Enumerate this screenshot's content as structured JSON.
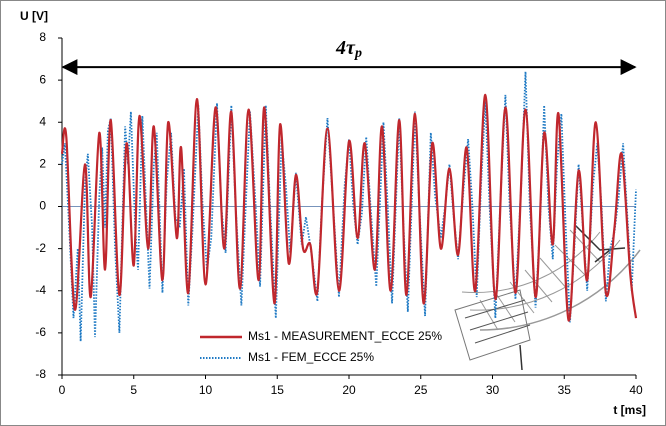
{
  "chart_data": {
    "type": "line",
    "y_label": "U [V]",
    "x_label": "t [ms]",
    "annotation": "4τ",
    "annotation_sub": "p",
    "xlim": [
      0,
      40
    ],
    "xticks": [
      0,
      5,
      10,
      15,
      20,
      25,
      30,
      35,
      40
    ],
    "ylim": [
      -8,
      8
    ],
    "yticks": [
      -8,
      -6,
      -4,
      -2,
      0,
      2,
      4,
      6,
      8
    ],
    "grid": false,
    "legend": "bottom",
    "series": [
      {
        "name": "Ms1 - MEASUREMENT_ECCE 25%",
        "color": "#c0272d",
        "style": "solid",
        "x": [
          0,
          0.3,
          0.9,
          1.6,
          2.0,
          2.6,
          3.0,
          3.4,
          4.0,
          4.5,
          5.0,
          5.4,
          6.0,
          6.4,
          7.0,
          7.4,
          8.0,
          8.3,
          8.8,
          9.4,
          10.0,
          10.7,
          11.3,
          11.8,
          12.4,
          13.0,
          13.7,
          14.1,
          14.8,
          15.2,
          15.8,
          16.3,
          16.8,
          17.3,
          17.8,
          18.5,
          19.3,
          20.0,
          20.6,
          21.1,
          21.8,
          22.3,
          22.9,
          23.5,
          24.0,
          24.6,
          25.2,
          25.8,
          26.4,
          27.0,
          27.6,
          28.2,
          28.8,
          29.5,
          30.2,
          30.9,
          31.6,
          32.3,
          33.0,
          33.6,
          34.2,
          34.6,
          35.3,
          36.0,
          36.6,
          37.2,
          37.9,
          38.5,
          39.0,
          39.6,
          40.0
        ],
        "values": [
          2.5,
          3.3,
          -4.9,
          2.0,
          -4.3,
          3.5,
          -3,
          4.1,
          -4.2,
          3.0,
          -2.8,
          4.3,
          -2.0,
          3.8,
          -3.5,
          4.0,
          -1.5,
          2.8,
          -4.1,
          5.1,
          -3.7,
          4.7,
          -2,
          4.5,
          -3.9,
          4.6,
          -3.5,
          4.7,
          -4.6,
          3.9,
          -2.7,
          1.5,
          -2.0,
          -1.8,
          -4.0,
          3.7,
          -4.0,
          3.1,
          -1.5,
          3.0,
          -3.0,
          3.8,
          -4.0,
          4.1,
          -4.2,
          4.4,
          -4.6,
          3.0,
          -2.0,
          1.8,
          -2.3,
          2.8,
          -4.0,
          5.3,
          -4.4,
          4.7,
          -4.1,
          4.6,
          -4.3,
          3.5,
          -1.8,
          4.4,
          -5.4,
          1.7,
          -3.5,
          4.0,
          -4.1,
          -1.0,
          2.5,
          -3.2,
          -5.3
        ]
      },
      {
        "name": "Ms1 - FEM_ECCE 25%",
        "color": "#1f7ac4",
        "style": "dotted",
        "x": [
          0,
          0.2,
          0.5,
          0.8,
          1.1,
          1.3,
          1.6,
          1.8,
          2.1,
          2.3,
          2.6,
          2.8,
          3.0,
          3.2,
          3.4,
          3.7,
          4.0,
          4.2,
          4.4,
          4.6,
          4.8,
          5.1,
          5.3,
          5.6,
          5.8,
          6.1,
          6.4,
          6.6,
          7.0,
          7.3,
          7.6,
          7.9,
          8.2,
          8.5,
          8.8,
          9.1,
          9.5,
          9.8,
          10.1,
          10.4,
          10.8,
          11.1,
          11.4,
          11.8,
          12.1,
          12.5,
          12.8,
          13.1,
          13.5,
          13.8,
          14.2,
          14.5,
          14.9,
          15.3,
          15.6,
          15.9,
          16.3,
          16.7,
          17.0,
          17.4,
          17.8,
          18.1,
          18.5,
          18.9,
          19.3,
          19.7,
          20.0,
          20.3,
          20.6,
          20.9,
          21.2,
          21.5,
          21.9,
          22.4,
          22.7,
          23.0,
          23.5,
          23.8,
          24.1,
          24.6,
          24.9,
          25.3,
          25.7,
          26.0,
          26.4,
          26.7,
          27.0,
          27.3,
          27.6,
          28.0,
          28.3,
          28.6,
          28.9,
          29.2,
          29.5,
          29.8,
          30.2,
          30.6,
          30.9,
          31.2,
          31.6,
          32.0,
          32.3,
          32.6,
          33.0,
          33.3,
          33.6,
          33.9,
          34.2,
          34.5,
          34.8,
          35.1,
          35.4,
          35.7,
          36.0,
          36.3,
          36.6,
          37.0,
          37.3,
          37.6,
          37.9,
          38.2,
          38.5,
          38.8,
          39.1,
          39.4,
          39.7,
          40.0
        ],
        "values": [
          2.0,
          3.0,
          -1,
          -5.3,
          -2,
          -6.4,
          1,
          2.5,
          -1,
          -6.2,
          0.5,
          2.8,
          -1,
          3.6,
          4.2,
          -2,
          -6.0,
          -1,
          3.8,
          2,
          4.5,
          -1,
          -3,
          4.3,
          1,
          -3.9,
          2,
          3.5,
          -4.1,
          1.2,
          3.5,
          -0.5,
          -1,
          1.8,
          -4.7,
          -1,
          4.8,
          0,
          -3,
          -1.5,
          4.9,
          0,
          -2.2,
          4.8,
          0,
          -4.7,
          0,
          4.5,
          0,
          -3.8,
          4.8,
          0,
          -5.3,
          3.2,
          1,
          -2.2,
          1.6,
          -1.8,
          -0.5,
          -2.3,
          -4.5,
          0,
          4.2,
          0,
          -4.3,
          1,
          3.2,
          0,
          -1.8,
          -0.3,
          3.3,
          0,
          -3.8,
          4.0,
          0,
          -4.6,
          4.2,
          -1,
          -5.0,
          4.5,
          0,
          -5.2,
          3.5,
          0.5,
          -1.5,
          0,
          2.0,
          -0.5,
          -2.5,
          1,
          3.2,
          0,
          -4.3,
          1,
          5.0,
          0,
          -5.3,
          1,
          5.3,
          0,
          -4.4,
          1,
          6.4,
          0,
          -4.8,
          -1,
          4.8,
          0,
          -2.5,
          2,
          4.4,
          -1,
          -5.5,
          -2,
          2.0,
          -1,
          -4.0,
          1,
          3.0,
          0,
          -4.5,
          -2,
          -1.2,
          0.5,
          3.0,
          -0.5,
          -4.0,
          0.8
        ]
      }
    ]
  }
}
